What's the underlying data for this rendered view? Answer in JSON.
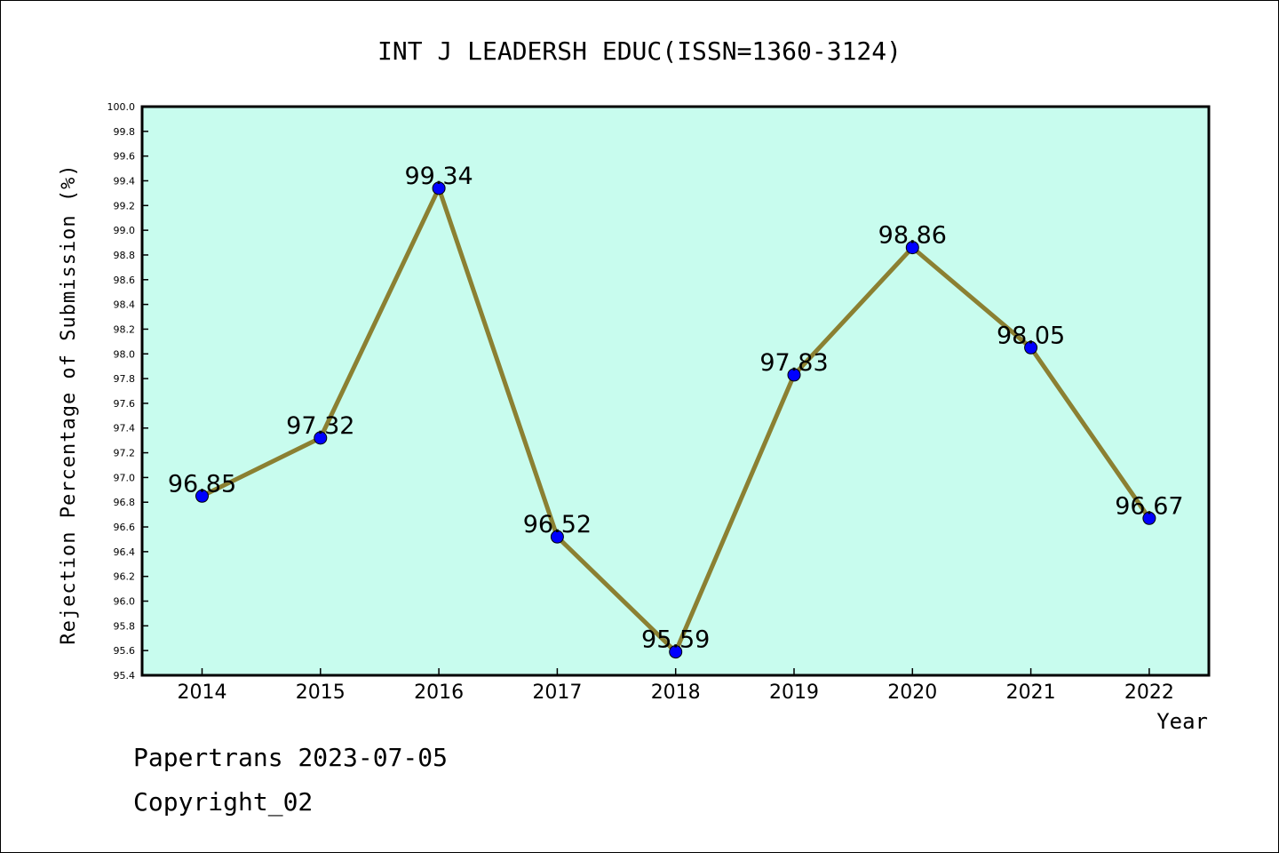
{
  "chart_data": {
    "type": "line",
    "title": "INT J LEADERSH EDUC(ISSN=1360-3124)",
    "xlabel": "Year",
    "ylabel": "Rejection Percentage of Submission (%)",
    "categories": [
      "2014",
      "2015",
      "2016",
      "2017",
      "2018",
      "2019",
      "2020",
      "2021",
      "2022"
    ],
    "values": [
      96.85,
      97.32,
      99.34,
      96.52,
      95.59,
      97.83,
      98.86,
      98.05,
      96.67
    ],
    "value_labels": [
      "96.85",
      "97.32",
      "99.34",
      "96.52",
      "95.59",
      "97.83",
      "98.86",
      "98.05",
      "96.67"
    ],
    "ylim": [
      95.4,
      100.0
    ],
    "yticks": [
      "95.4",
      "95.6",
      "95.8",
      "96.0",
      "96.2",
      "96.4",
      "96.6",
      "96.8",
      "97.0",
      "97.2",
      "97.4",
      "97.6",
      "97.8",
      "98.0",
      "98.2",
      "98.4",
      "98.6",
      "98.8",
      "99.0",
      "99.2",
      "99.4",
      "99.6",
      "99.8",
      "100.0"
    ],
    "grid": false,
    "colors": {
      "plot_background": "#c8fcee",
      "line": "#8b8032",
      "marker": "#0000ff"
    }
  },
  "footer": {
    "line1": "Papertrans 2023-07-05",
    "line2": "Copyright_02"
  }
}
